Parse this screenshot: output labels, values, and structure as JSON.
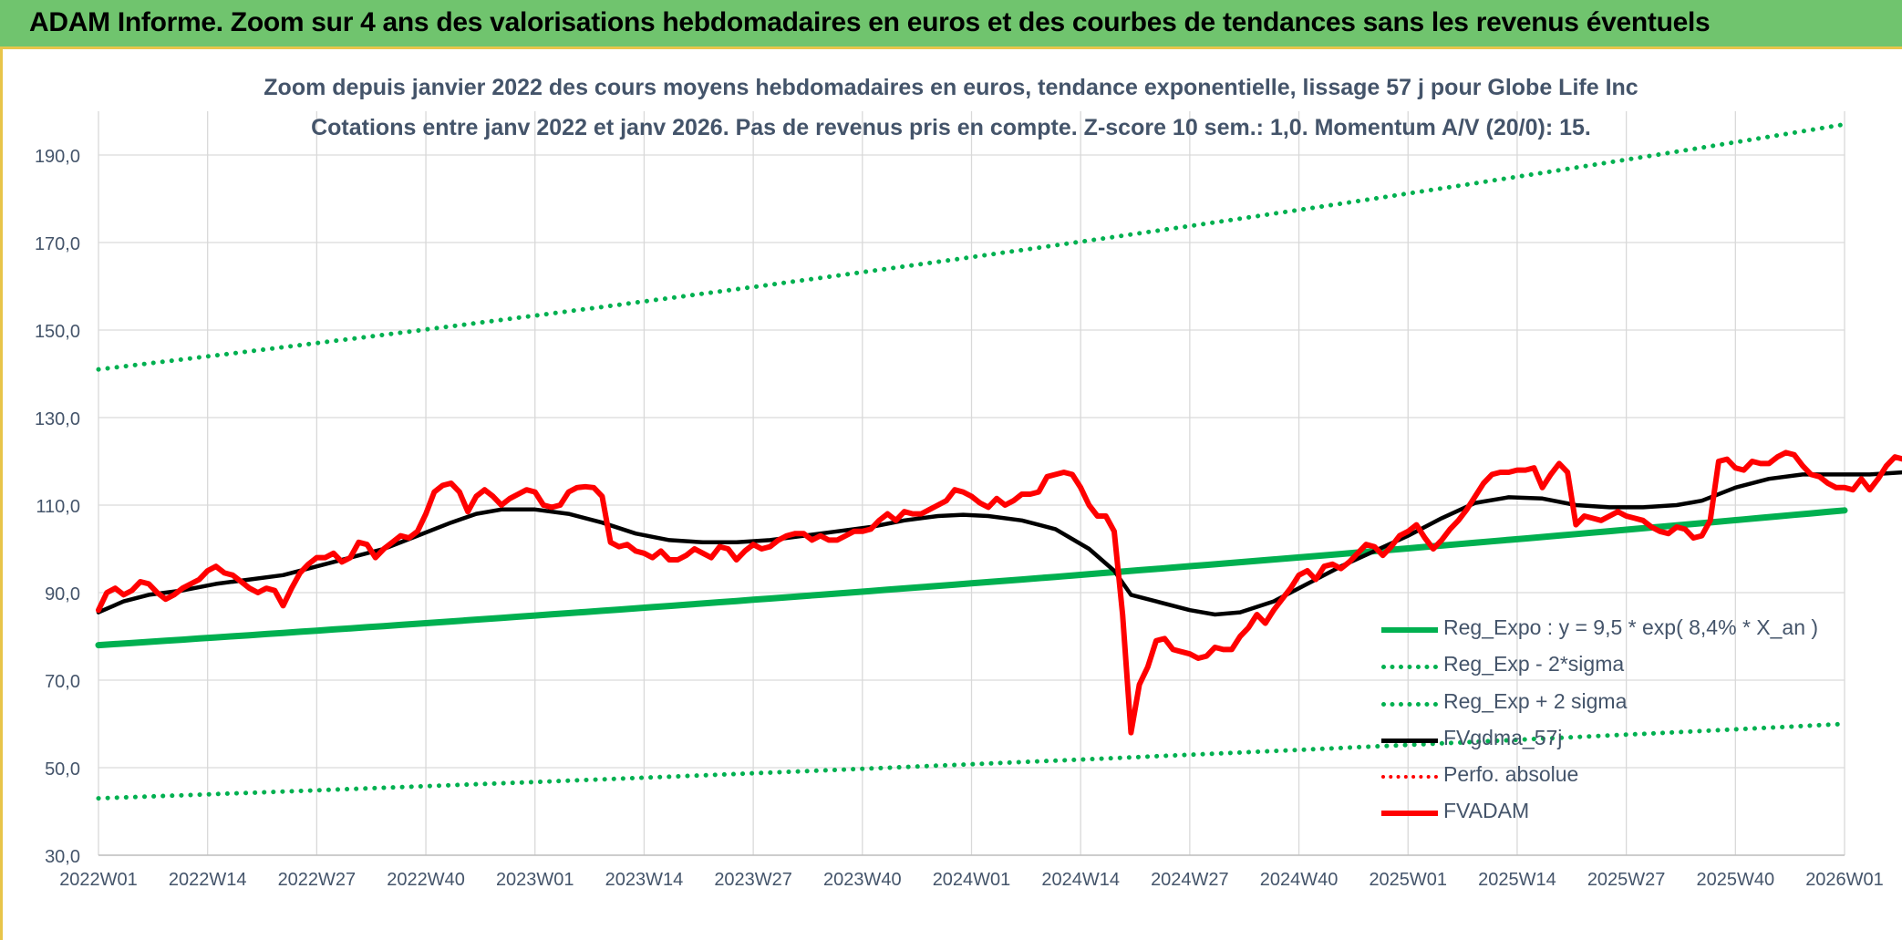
{
  "banner": {
    "title": "ADAM Informe. Zoom sur 4 ans des valorisations hebdomadaires en euros et des courbes de tendances sans les revenus éventuels"
  },
  "colors": {
    "banner_bg": "#70c46e",
    "trend_green": "#00b050",
    "price_red": "#ff0000",
    "smooth_black": "#000000",
    "text": "#44546a"
  },
  "chart_data": {
    "type": "line",
    "title": "Zoom depuis janvier 2022 des cours moyens hebdomadaires en euros, tendance exponentielle, lissage 57 j pour Globe Life Inc",
    "subtitle": "Cotations entre janv 2022 et janv 2026. Pas de revenus pris en compte. Z-score 10 sem.: 1,0. Momentum A/V (20/0): 15.",
    "ylim": [
      30,
      200
    ],
    "yticks": [
      "30,0",
      "50,0",
      "70,0",
      "90,0",
      "110,0",
      "130,0",
      "150,0",
      "170,0",
      "190,0"
    ],
    "x_tick_labels": [
      "2022W01",
      "2022W14",
      "2022W27",
      "2022W40",
      "2023W01",
      "2023W14",
      "2023W27",
      "2023W40",
      "2024W01",
      "2024W14",
      "2024W27",
      "2024W40",
      "2025W01",
      "2025W14",
      "2025W27",
      "2025W40",
      "2026W01"
    ],
    "grid": true,
    "legend_position": "bottom-right",
    "legend": [
      {
        "name": "Reg_Expo : y = 9,5 * exp( 8,4% *  X_an )",
        "style": "solid-green"
      },
      {
        "name": "Reg_Exp - 2*sigma",
        "style": "dot-green"
      },
      {
        "name": "Reg_Exp + 2 sigma",
        "style": "dot-green"
      },
      {
        "name": "FVgdma_57j",
        "style": "solid-black"
      },
      {
        "name": "Perfo. absolue",
        "style": "dot-red"
      },
      {
        "name": "FVADAM",
        "style": "solid-red"
      }
    ],
    "series": [
      {
        "name": "Reg_Expo : y = 9,5 * exp( 8,4% *  X_an )",
        "kind": "exp_trend",
        "start": 78.0,
        "end": 108.8
      },
      {
        "name": "Reg_Exp - 2*sigma",
        "kind": "exp_trend",
        "start": 43.0,
        "end": 60.0
      },
      {
        "name": "Reg_Exp + 2 sigma",
        "kind": "exp_trend",
        "start": 141.0,
        "end": 197.0
      },
      {
        "name": "FVgdma_57j",
        "points": [
          [
            0,
            85.5
          ],
          [
            3,
            88
          ],
          [
            6,
            89.5
          ],
          [
            10,
            90.5
          ],
          [
            14,
            92
          ],
          [
            18,
            93
          ],
          [
            22,
            94
          ],
          [
            26,
            96
          ],
          [
            30,
            98
          ],
          [
            34,
            100
          ],
          [
            38,
            103
          ],
          [
            42,
            106
          ],
          [
            45,
            108
          ],
          [
            48,
            109
          ],
          [
            52,
            109
          ],
          [
            56,
            108
          ],
          [
            60,
            106
          ],
          [
            64,
            103.5
          ],
          [
            68,
            102
          ],
          [
            72,
            101.5
          ],
          [
            76,
            101.5
          ],
          [
            80,
            102
          ],
          [
            84,
            103
          ],
          [
            88,
            104
          ],
          [
            92,
            105
          ],
          [
            96,
            106.5
          ],
          [
            100,
            107.5
          ],
          [
            103,
            107.8
          ],
          [
            106,
            107.5
          ],
          [
            110,
            106.5
          ],
          [
            114,
            104.5
          ],
          [
            118,
            100
          ],
          [
            121,
            95
          ],
          [
            123,
            89.5
          ],
          [
            126,
            88
          ],
          [
            130,
            86
          ],
          [
            133,
            85
          ],
          [
            136,
            85.5
          ],
          [
            140,
            88
          ],
          [
            144,
            92
          ],
          [
            148,
            96
          ],
          [
            152,
            99.5
          ],
          [
            156,
            103
          ],
          [
            160,
            107
          ],
          [
            164,
            110.5
          ],
          [
            168,
            111.8
          ],
          [
            172,
            111.5
          ],
          [
            176,
            110
          ],
          [
            180,
            109.5
          ],
          [
            184,
            109.5
          ],
          [
            188,
            110
          ],
          [
            191,
            111
          ],
          [
            195,
            114
          ],
          [
            199,
            116
          ],
          [
            203,
            117
          ],
          [
            207,
            117
          ],
          [
            211,
            117
          ],
          [
            215,
            117.5
          ],
          [
            218,
            118.5
          ]
        ]
      },
      {
        "name": "FVADAM",
        "points": [
          [
            0,
            86
          ],
          [
            1,
            90
          ],
          [
            2,
            91
          ],
          [
            3,
            89.5
          ],
          [
            4,
            90.5
          ],
          [
            5,
            92.5
          ],
          [
            6,
            92
          ],
          [
            7,
            90
          ],
          [
            8,
            88.5
          ],
          [
            9,
            89.5
          ],
          [
            10,
            91
          ],
          [
            11,
            92
          ],
          [
            12,
            93
          ],
          [
            13,
            95
          ],
          [
            14,
            96
          ],
          [
            15,
            94.5
          ],
          [
            16,
            94
          ],
          [
            17,
            92.5
          ],
          [
            18,
            91
          ],
          [
            19,
            90
          ],
          [
            20,
            91
          ],
          [
            21,
            90.5
          ],
          [
            22,
            87
          ],
          [
            23,
            91
          ],
          [
            24,
            94.5
          ],
          [
            25,
            96.5
          ],
          [
            26,
            98
          ],
          [
            27,
            98
          ],
          [
            28,
            99
          ],
          [
            29,
            97
          ],
          [
            30,
            98
          ],
          [
            31,
            101.5
          ],
          [
            32,
            101
          ],
          [
            33,
            98
          ],
          [
            34,
            100
          ],
          [
            35,
            101.5
          ],
          [
            36,
            103
          ],
          [
            37,
            102.5
          ],
          [
            38,
            104
          ],
          [
            39,
            108
          ],
          [
            40,
            113
          ],
          [
            41,
            114.5
          ],
          [
            42,
            115
          ],
          [
            43,
            113
          ],
          [
            44,
            108.5
          ],
          [
            45,
            112
          ],
          [
            46,
            113.5
          ],
          [
            47,
            112
          ],
          [
            48,
            110
          ],
          [
            49,
            111.5
          ],
          [
            50,
            112.5
          ],
          [
            51,
            113.5
          ],
          [
            52,
            113
          ],
          [
            53,
            110
          ],
          [
            54,
            109.5
          ],
          [
            55,
            110
          ],
          [
            56,
            113
          ],
          [
            57,
            114
          ],
          [
            58,
            114.2
          ],
          [
            59,
            114
          ],
          [
            60,
            112
          ],
          [
            61,
            101.5
          ],
          [
            62,
            100.5
          ],
          [
            63,
            101
          ],
          [
            64,
            99.5
          ],
          [
            65,
            99
          ],
          [
            66,
            98
          ],
          [
            67,
            99.5
          ],
          [
            68,
            97.5
          ],
          [
            69,
            97.5
          ],
          [
            70,
            98.5
          ],
          [
            71,
            100
          ],
          [
            72,
            99
          ],
          [
            73,
            98
          ],
          [
            74,
            100.5
          ],
          [
            75,
            100
          ],
          [
            76,
            97.5
          ],
          [
            77,
            99.5
          ],
          [
            78,
            101
          ],
          [
            79,
            100
          ],
          [
            80,
            100.5
          ],
          [
            81,
            102
          ],
          [
            82,
            103
          ],
          [
            83,
            103.5
          ],
          [
            84,
            103.5
          ],
          [
            85,
            102
          ],
          [
            86,
            103
          ],
          [
            87,
            102
          ],
          [
            88,
            102
          ],
          [
            89,
            103
          ],
          [
            90,
            104
          ],
          [
            91,
            104
          ],
          [
            92,
            104.5
          ],
          [
            93,
            106.5
          ],
          [
            94,
            108
          ],
          [
            95,
            106.5
          ],
          [
            96,
            108.5
          ],
          [
            97,
            108
          ],
          [
            98,
            108
          ],
          [
            99,
            109
          ],
          [
            100,
            110
          ],
          [
            101,
            111
          ],
          [
            102,
            113.5
          ],
          [
            103,
            113
          ],
          [
            104,
            112
          ],
          [
            105,
            110.5
          ],
          [
            106,
            109.5
          ],
          [
            107,
            111.5
          ],
          [
            108,
            110
          ],
          [
            109,
            111
          ],
          [
            110,
            112.5
          ],
          [
            111,
            112.5
          ],
          [
            112,
            113
          ],
          [
            113,
            116.5
          ],
          [
            114,
            117
          ],
          [
            115,
            117.5
          ],
          [
            116,
            117
          ],
          [
            117,
            114
          ],
          [
            118,
            110
          ],
          [
            119,
            107.5
          ],
          [
            120,
            107.5
          ],
          [
            121,
            104
          ],
          [
            122,
            85
          ],
          [
            123,
            58
          ],
          [
            124,
            69
          ],
          [
            125,
            73
          ],
          [
            126,
            79
          ],
          [
            127,
            79.5
          ],
          [
            128,
            77
          ],
          [
            129,
            76.5
          ],
          [
            130,
            76
          ],
          [
            131,
            75
          ],
          [
            132,
            75.5
          ],
          [
            133,
            77.5
          ],
          [
            134,
            77
          ],
          [
            135,
            77
          ],
          [
            136,
            80
          ],
          [
            137,
            82
          ],
          [
            138,
            85
          ],
          [
            139,
            83
          ],
          [
            140,
            86
          ],
          [
            141,
            88.5
          ],
          [
            142,
            91
          ],
          [
            143,
            94
          ],
          [
            144,
            95
          ],
          [
            145,
            93
          ],
          [
            146,
            96
          ],
          [
            147,
            96.5
          ],
          [
            148,
            95.5
          ],
          [
            149,
            97
          ],
          [
            150,
            99
          ],
          [
            151,
            101
          ],
          [
            152,
            100.5
          ],
          [
            153,
            98.5
          ],
          [
            154,
            100.5
          ],
          [
            155,
            103
          ],
          [
            156,
            104
          ],
          [
            157,
            105.5
          ],
          [
            158,
            102.5
          ],
          [
            159,
            100
          ],
          [
            160,
            102
          ],
          [
            161,
            104.5
          ],
          [
            162,
            106.5
          ],
          [
            163,
            109
          ],
          [
            164,
            112
          ],
          [
            165,
            115
          ],
          [
            166,
            117
          ],
          [
            167,
            117.5
          ],
          [
            168,
            117.5
          ],
          [
            169,
            118
          ],
          [
            170,
            118
          ],
          [
            171,
            118.5
          ],
          [
            172,
            114
          ],
          [
            173,
            117
          ],
          [
            174,
            119.5
          ],
          [
            175,
            117.5
          ],
          [
            176,
            105.5
          ],
          [
            177,
            107.5
          ],
          [
            178,
            107
          ],
          [
            179,
            106.5
          ],
          [
            180,
            107.5
          ],
          [
            181,
            108.5
          ],
          [
            182,
            107.5
          ],
          [
            183,
            107
          ],
          [
            184,
            106.5
          ],
          [
            185,
            105
          ],
          [
            186,
            104
          ],
          [
            187,
            103.5
          ],
          [
            188,
            105
          ],
          [
            189,
            104.5
          ],
          [
            190,
            102.5
          ],
          [
            191,
            103
          ],
          [
            192,
            106.5
          ],
          [
            193,
            120
          ],
          [
            194,
            120.5
          ],
          [
            195,
            118.5
          ],
          [
            196,
            118
          ],
          [
            197,
            120
          ],
          [
            198,
            119.5
          ],
          [
            199,
            119.5
          ],
          [
            200,
            121
          ],
          [
            201,
            122
          ],
          [
            202,
            121.5
          ],
          [
            203,
            119
          ],
          [
            204,
            117
          ],
          [
            205,
            116.5
          ],
          [
            206,
            115
          ],
          [
            207,
            114
          ],
          [
            208,
            114
          ],
          [
            209,
            113.5
          ],
          [
            210,
            116
          ],
          [
            211,
            113.5
          ],
          [
            212,
            116
          ],
          [
            213,
            119
          ],
          [
            214,
            121
          ],
          [
            215,
            120.5
          ],
          [
            216,
            118.5
          ]
        ]
      }
    ]
  }
}
